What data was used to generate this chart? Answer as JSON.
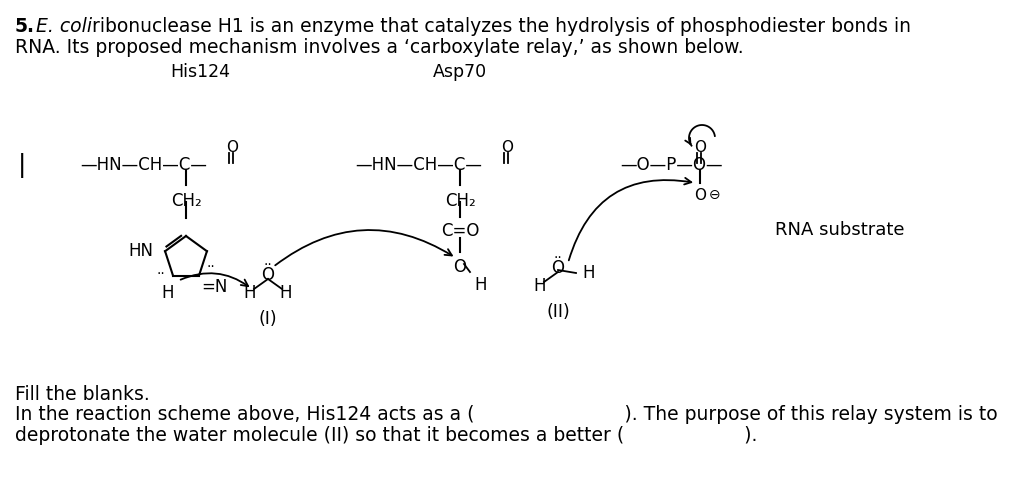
{
  "bg_color": "#ffffff",
  "text_color": "#000000",
  "his124_label": "His124",
  "asp70_label": "Asp70",
  "rna_label": "RNA substrate",
  "label_I": "(I)",
  "label_II": "(II)",
  "fill_blanks_text": "Fill the blanks.",
  "question_text1": "In the reaction scheme above, His124 acts as a (                         ). The purpose of this relay system is to",
  "question_text2": "deprotonate the water molecule (II) so that it becomes a better (                    ).",
  "fs_title": 13.5,
  "fs_chem": 12,
  "fs_label": 12.5,
  "fs_small": 10
}
